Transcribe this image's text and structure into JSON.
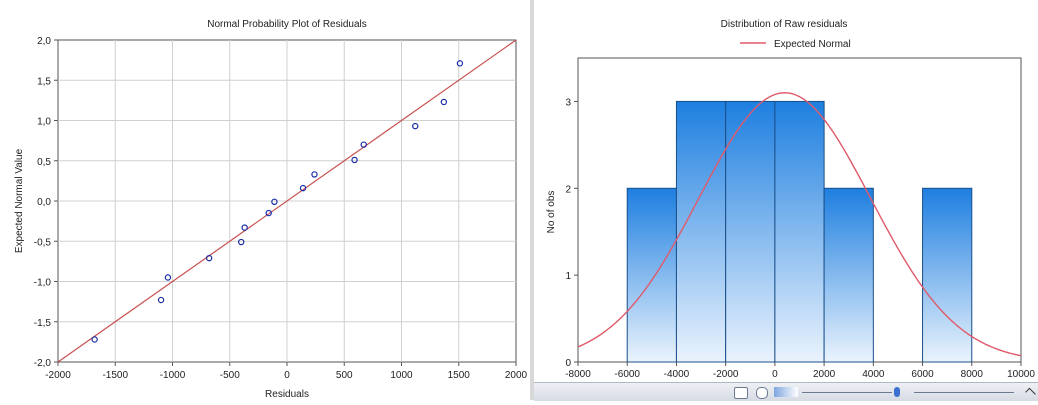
{
  "chart_data": [
    {
      "type": "scatter",
      "title": "Normal Probability Plot of Residuals",
      "xlabel": "Residuals",
      "ylabel": "Expected Normal Value",
      "xlim": [
        -2000,
        2000
      ],
      "ylim": [
        -2.0,
        2.0
      ],
      "xticks": [
        "-2000",
        "-1500",
        "-1000",
        "-500",
        "0",
        "500",
        "1000",
        "1500",
        "2000"
      ],
      "yticks": [
        "2,0",
        "1,5",
        "1,0",
        "0,5",
        "0,0",
        "-0,5",
        "-1,0",
        "-1,5",
        "-2,0"
      ],
      "grid": true,
      "reference_line": {
        "x": [
          -2000,
          2000
        ],
        "y": [
          -2.0,
          2.0
        ]
      },
      "points": [
        {
          "x": -1680,
          "y": -1.72
        },
        {
          "x": -1100,
          "y": -1.23
        },
        {
          "x": -1040,
          "y": -0.95
        },
        {
          "x": -680,
          "y": -0.71
        },
        {
          "x": -400,
          "y": -0.51
        },
        {
          "x": -370,
          "y": -0.33
        },
        {
          "x": -160,
          "y": -0.15
        },
        {
          "x": -110,
          "y": -0.01
        },
        {
          "x": 140,
          "y": 0.16
        },
        {
          "x": 240,
          "y": 0.33
        },
        {
          "x": 590,
          "y": 0.51
        },
        {
          "x": 670,
          "y": 0.7
        },
        {
          "x": 1120,
          "y": 0.93
        },
        {
          "x": 1370,
          "y": 1.23
        },
        {
          "x": 1510,
          "y": 1.71
        }
      ],
      "colors": {
        "points": "#1a2ea8",
        "line": "#c85050"
      }
    },
    {
      "type": "bar",
      "title": "Distribution of Raw residuals",
      "legend": [
        "Expected Normal"
      ],
      "xlabel": "",
      "ylabel": "No of obs",
      "xlim": [
        -8000,
        10000
      ],
      "ylim": [
        0,
        3.5
      ],
      "xticks": [
        "-8000",
        "-6000",
        "-4000",
        "-2000",
        "0",
        "2000",
        "4000",
        "6000",
        "8000",
        "10000"
      ],
      "yticks": [
        "0",
        "1",
        "2",
        "3"
      ],
      "bins": [
        {
          "from": -6000,
          "to": -4000,
          "count": 2
        },
        {
          "from": -4000,
          "to": -2000,
          "count": 3
        },
        {
          "from": -2000,
          "to": 0,
          "count": 3
        },
        {
          "from": 0,
          "to": 2000,
          "count": 3
        },
        {
          "from": 2000,
          "to": 4000,
          "count": 2
        },
        {
          "from": 6000,
          "to": 8000,
          "count": 2
        }
      ],
      "normal_curve": {
        "mean": 400,
        "sd": 3500,
        "peak": 3.1
      },
      "colors": {
        "bar_top": "#1e7fe0",
        "bar_bottom": "#eaf3fd",
        "curve": "#e05a6a",
        "edge": "#1a4f8a"
      }
    }
  ]
}
